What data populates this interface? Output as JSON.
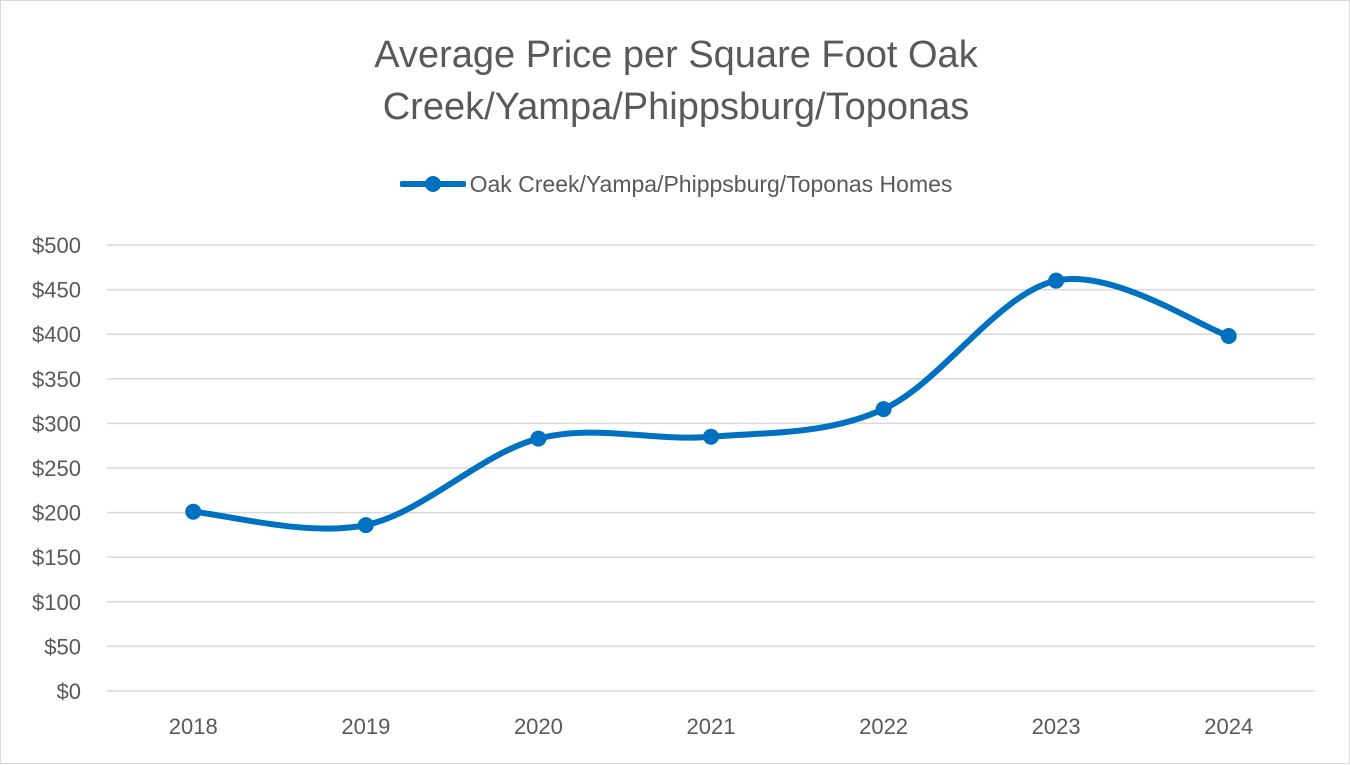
{
  "chart_data": {
    "type": "line",
    "title_lines": [
      "Average Price per Square Foot Oak",
      "Creek/Yampa/Phippsburg/Toponas"
    ],
    "categories": [
      "2018",
      "2019",
      "2020",
      "2021",
      "2022",
      "2023",
      "2024"
    ],
    "series": [
      {
        "name": "Oak Creek/Yampa/Phippsburg/Toponas Homes",
        "values": [
          201,
          186,
          283,
          285,
          316,
          460,
          398
        ],
        "color": "#0070c0"
      }
    ],
    "y_ticks": [
      "$0",
      "$50",
      "$100",
      "$150",
      "$200",
      "$250",
      "$300",
      "$350",
      "$400",
      "$450",
      "$500"
    ],
    "ylim": [
      0,
      500
    ],
    "y_step": 50,
    "xlabel": "",
    "ylabel": "",
    "grid": true,
    "legend_position": "top",
    "smooth": true,
    "gridline_color": "#d9d9d9",
    "text_color": "#595959"
  }
}
